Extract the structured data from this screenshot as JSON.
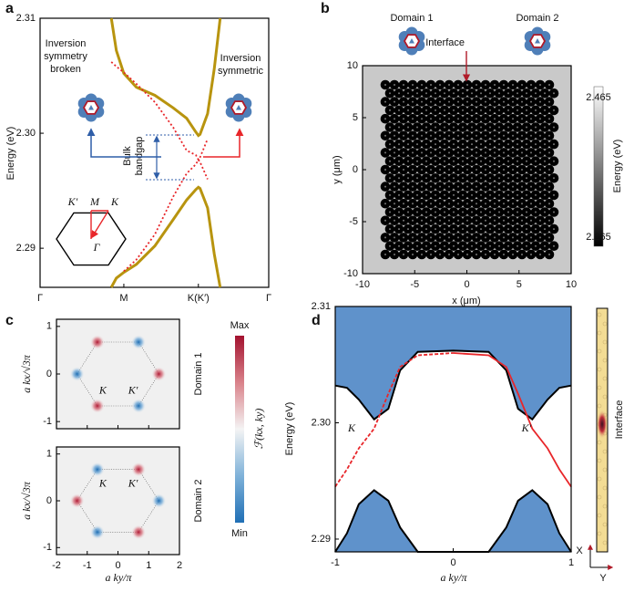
{
  "chart_data": [
    {
      "panel": "a",
      "type": "line",
      "ylabel": "Energy (eV)",
      "xlim": [
        0,
        2.73
      ],
      "ylim": [
        2.2866,
        2.31
      ],
      "xticks": [
        {
          "value": 0,
          "label": "Γ"
        },
        {
          "value": 1,
          "label": "M"
        },
        {
          "value": 1.89,
          "label": "K(K′)"
        },
        {
          "value": 2.73,
          "label": "Γ"
        }
      ],
      "yticks": [
        2.29,
        {
          "value": 2.3,
          "label": "2.30"
        },
        2.31
      ],
      "x": [
        0.85,
        0.91,
        1.0,
        1.15,
        1.37,
        1.59,
        1.75,
        1.86,
        1.89,
        1.91,
        2.0,
        2.08,
        2.15
      ],
      "series": [
        {
          "color": "#b8940f",
          "values": [
            2.31,
            2.3072,
            2.3052,
            2.304,
            2.3033,
            2.3022,
            2.3013,
            2.3001,
            2.2998,
            2.2999,
            2.3017,
            2.3056,
            2.31
          ]
        },
        {
          "color": "#b8940f",
          "values": [
            2.2866,
            2.2874,
            2.2879,
            2.2886,
            2.2902,
            2.2925,
            2.2942,
            2.2951,
            2.2953,
            2.2952,
            2.2935,
            2.2895,
            2.2866
          ]
        },
        {
          "color": "#e8262a",
          "dash": true,
          "values": [
            2.3062,
            2.3058,
            2.3053,
            2.3043,
            2.3027,
            2.3005,
            2.2985,
            2.2981,
            2.2977,
            2.2979,
            2.2995,
            null,
            null
          ]
        },
        {
          "color": "#e8262a",
          "dash": true,
          "values": [
            null,
            null,
            2.288,
            2.289,
            2.2912,
            2.2945,
            2.2965,
            2.2973,
            2.2977,
            2.2975,
            2.296,
            null,
            null
          ]
        }
      ],
      "annotations": {
        "left": [
          "Inversion",
          "symmetry",
          "broken"
        ],
        "right": [
          "Inversion",
          "symmetric"
        ],
        "gap": [
          "Bulk",
          "bandgap"
        ],
        "bz": [
          "K′",
          "M",
          "K",
          "Γ"
        ]
      }
    },
    {
      "panel": "b",
      "type": "heatmap",
      "xlabel": "x (μm)",
      "ylabel": "y (μm)",
      "xlim": [
        -10,
        10
      ],
      "ylim": [
        -10,
        10
      ],
      "xticks": [
        -10,
        -5,
        0,
        5,
        10
      ],
      "yticks": [
        -10,
        -5,
        0,
        5,
        10
      ],
      "colorbar": {
        "label": "Energy (eV)",
        "lim": [
          2.265,
          2.465
        ],
        "ticks": [
          2.265,
          2.465
        ]
      },
      "annotations": {
        "domain1": "Domain 1",
        "domain2": "Domain 2",
        "interface": "Interface"
      }
    },
    {
      "panel": "c",
      "type": "heatmap",
      "xlabel": "a ky/π",
      "ylabel": "a kx/√3π",
      "xlim": [
        -2,
        2
      ],
      "ylim": [
        -1.15,
        1.15
      ],
      "xticks": [
        -2,
        -1,
        0,
        1,
        2
      ],
      "yticks": [
        -1,
        0,
        1
      ],
      "colorbar": {
        "label": "ℱ(kx, ky)",
        "max_label": "Max",
        "min_label": "Min"
      },
      "subplots": [
        {
          "label": "Domain 1",
          "k_labels": [
            "K",
            "K′"
          ],
          "peaks": {
            "x": [
              -0.67,
              0.67,
              1.33,
              0.67,
              -0.67,
              -1.33
            ],
            "y": [
              0.67,
              0.67,
              0,
              -0.67,
              -0.67,
              0
            ],
            "values": [
              1,
              -1,
              1,
              -1,
              1,
              -1
            ]
          }
        },
        {
          "label": "Domain 2",
          "k_labels": [
            "K",
            "K′"
          ],
          "peaks": {
            "x": [
              -0.67,
              0.67,
              1.33,
              0.67,
              -0.67,
              -1.33
            ],
            "y": [
              0.67,
              0.67,
              0,
              -0.67,
              -0.67,
              0
            ],
            "values": [
              -1,
              1,
              -1,
              1,
              -1,
              1
            ]
          }
        }
      ]
    },
    {
      "panel": "d",
      "type": "band",
      "xlabel": "a ky/π",
      "ylabel": "Energy (eV)",
      "xlim": [
        -1,
        1
      ],
      "ylim": [
        2.2889,
        2.31
      ],
      "xticks": [
        -1,
        0,
        1
      ],
      "yticks": [
        2.29,
        {
          "value": 2.3,
          "label": "2.30"
        },
        2.31
      ],
      "x": [
        -1,
        -0.9,
        -0.8,
        -0.67,
        -0.55,
        -0.45,
        -0.3,
        0,
        0.3,
        0.45,
        0.55,
        0.67,
        0.8,
        0.9,
        1
      ],
      "series": [
        {
          "color": "#5f92cb",
          "fill": "top",
          "values": [
            2.3032,
            2.303,
            2.302,
            2.3003,
            2.3012,
            2.3045,
            2.3061,
            2.3062,
            2.3061,
            2.3045,
            2.3012,
            2.3003,
            2.302,
            2.303,
            2.3032
          ]
        },
        {
          "color": "#5f92cb",
          "fill": "bottom",
          "values": [
            2.2889,
            2.2905,
            2.293,
            2.2942,
            2.2933,
            2.291,
            2.2889,
            2.2889,
            2.2889,
            2.291,
            2.2933,
            2.2942,
            2.293,
            2.2905,
            2.2889
          ]
        },
        {
          "color": "#e8262a",
          "dash": true,
          "values": [
            2.2945,
            2.296,
            2.2978,
            2.2995,
            2.3025,
            2.3048,
            2.3058,
            2.306,
            null,
            null,
            null,
            null,
            null,
            null,
            null
          ]
        },
        {
          "color": "#e8262a",
          "values": [
            null,
            null,
            null,
            null,
            null,
            null,
            null,
            2.306,
            2.3058,
            2.3048,
            2.3025,
            2.2995,
            2.2978,
            2.296,
            2.2945
          ]
        }
      ],
      "annotations": {
        "k_labels": [
          "K",
          "K′"
        ],
        "interface": "Interface",
        "axes": [
          "X",
          "Y"
        ]
      }
    }
  ]
}
